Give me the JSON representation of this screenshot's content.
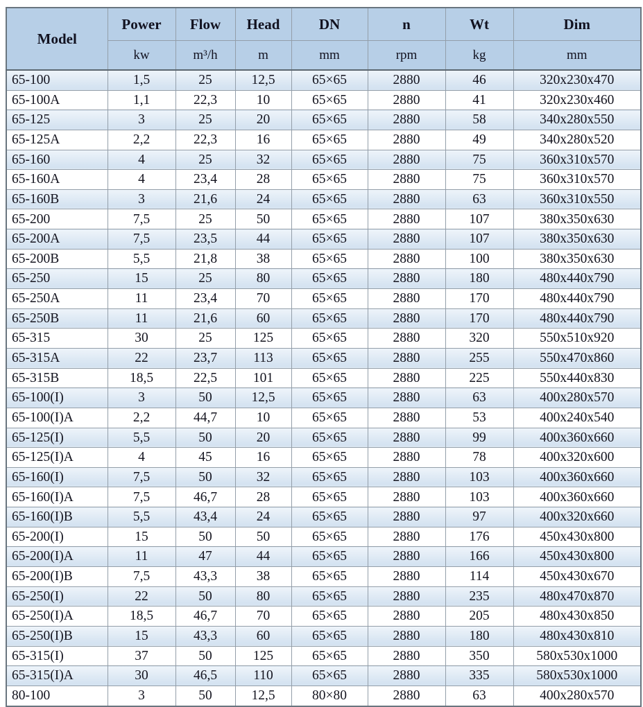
{
  "table": {
    "columns": [
      {
        "key": "model",
        "label": "Model",
        "unit": ""
      },
      {
        "key": "power",
        "label": "Power",
        "unit": "kw"
      },
      {
        "key": "flow",
        "label": "Flow",
        "unit": "m³/h"
      },
      {
        "key": "head",
        "label": "Head",
        "unit": "m"
      },
      {
        "key": "dn",
        "label": "DN",
        "unit": "mm"
      },
      {
        "key": "n",
        "label": "n",
        "unit": "rpm"
      },
      {
        "key": "wt",
        "label": "Wt",
        "unit": "kg"
      },
      {
        "key": "dim",
        "label": "Dim",
        "unit": "mm"
      }
    ],
    "rows": [
      [
        "65-100",
        "1,5",
        "25",
        "12,5",
        "65×65",
        "2880",
        "46",
        "320x230x470"
      ],
      [
        "65-100A",
        "1,1",
        "22,3",
        "10",
        "65×65",
        "2880",
        "41",
        "320x230x460"
      ],
      [
        "65-125",
        "3",
        "25",
        "20",
        "65×65",
        "2880",
        "58",
        "340x280x550"
      ],
      [
        "65-125A",
        "2,2",
        "22,3",
        "16",
        "65×65",
        "2880",
        "49",
        "340x280x520"
      ],
      [
        "65-160",
        "4",
        "25",
        "32",
        "65×65",
        "2880",
        "75",
        "360x310x570"
      ],
      [
        "65-160A",
        "4",
        "23,4",
        "28",
        "65×65",
        "2880",
        "75",
        "360x310x570"
      ],
      [
        "65-160B",
        "3",
        "21,6",
        "24",
        "65×65",
        "2880",
        "63",
        "360x310x550"
      ],
      [
        "65-200",
        "7,5",
        "25",
        "50",
        "65×65",
        "2880",
        "107",
        "380x350x630"
      ],
      [
        "65-200A",
        "7,5",
        "23,5",
        "44",
        "65×65",
        "2880",
        "107",
        "380x350x630"
      ],
      [
        "65-200B",
        "5,5",
        "21,8",
        "38",
        "65×65",
        "2880",
        "100",
        "380x350x630"
      ],
      [
        "65-250",
        "15",
        "25",
        "80",
        "65×65",
        "2880",
        "180",
        "480x440x790"
      ],
      [
        "65-250A",
        "11",
        "23,4",
        "70",
        "65×65",
        "2880",
        "170",
        "480x440x790"
      ],
      [
        "65-250B",
        "11",
        "21,6",
        "60",
        "65×65",
        "2880",
        "170",
        "480x440x790"
      ],
      [
        "65-315",
        "30",
        "25",
        "125",
        "65×65",
        "2880",
        "320",
        "550x510x920"
      ],
      [
        "65-315A",
        "22",
        "23,7",
        "113",
        "65×65",
        "2880",
        "255",
        "550x470x860"
      ],
      [
        "65-315B",
        "18,5",
        "22,5",
        "101",
        "65×65",
        "2880",
        "225",
        "550x440x830"
      ],
      [
        "65-100(I)",
        "3",
        "50",
        "12,5",
        "65×65",
        "2880",
        "63",
        "400x280x570"
      ],
      [
        "65-100(I)A",
        "2,2",
        "44,7",
        "10",
        "65×65",
        "2880",
        "53",
        "400x240x540"
      ],
      [
        "65-125(I)",
        "5,5",
        "50",
        "20",
        "65×65",
        "2880",
        "99",
        "400x360x660"
      ],
      [
        "65-125(I)A",
        "4",
        "45",
        "16",
        "65×65",
        "2880",
        "78",
        "400x320x600"
      ],
      [
        "65-160(I)",
        "7,5",
        "50",
        "32",
        "65×65",
        "2880",
        "103",
        "400x360x660"
      ],
      [
        "65-160(I)A",
        "7,5",
        "46,7",
        "28",
        "65×65",
        "2880",
        "103",
        "400x360x660"
      ],
      [
        "65-160(I)B",
        "5,5",
        "43,4",
        "24",
        "65×65",
        "2880",
        "97",
        "400x320x660"
      ],
      [
        "65-200(I)",
        "15",
        "50",
        "50",
        "65×65",
        "2880",
        "176",
        "450x430x800"
      ],
      [
        "65-200(I)A",
        "11",
        "47",
        "44",
        "65×65",
        "2880",
        "166",
        "450x430x800"
      ],
      [
        "65-200(I)B",
        "7,5",
        "43,3",
        "38",
        "65×65",
        "2880",
        "114",
        "450x430x670"
      ],
      [
        "65-250(I)",
        "22",
        "50",
        "80",
        "65×65",
        "2880",
        "235",
        "480x470x870"
      ],
      [
        "65-250(I)A",
        "18,5",
        "46,7",
        "70",
        "65×65",
        "2880",
        "205",
        "480x430x850"
      ],
      [
        "65-250(I)B",
        "15",
        "43,3",
        "60",
        "65×65",
        "2880",
        "180",
        "480x430x810"
      ],
      [
        "65-315(I)",
        "37",
        "50",
        "125",
        "65×65",
        "2880",
        "350",
        "580x530x1000"
      ],
      [
        "65-315(I)A",
        "30",
        "46,5",
        "110",
        "65×65",
        "2880",
        "335",
        "580x530x1000"
      ]
    ],
    "partial_row": [
      "80-100",
      "3",
      "50",
      "12,5",
      "80×80",
      "2880",
      "63",
      "400x280x570"
    ]
  },
  "colors": {
    "header_bg": "#b7cfe7",
    "stripe_bg": "#d5e3f1",
    "row_bg": "#ffffff",
    "border": "#939ea9",
    "outer_border": "#69757f",
    "text": "#14141f"
  }
}
